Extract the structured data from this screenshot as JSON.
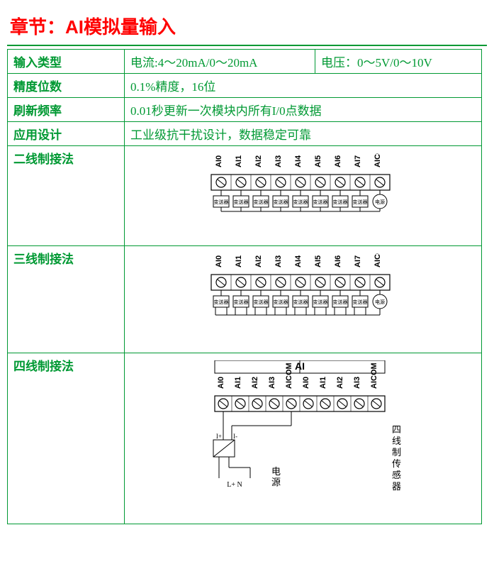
{
  "title": "章节：AI模拟量输入",
  "colors": {
    "title": "#ff0000",
    "border": "#009933",
    "text": "#009933",
    "diagram_stroke": "#000000"
  },
  "rows": {
    "input_type": {
      "label": "输入类型",
      "current": "电流:4～20mA/0～20mA",
      "voltage": "电压：0～5V/0～10V"
    },
    "precision": {
      "label": "精度位数",
      "value": "0.1%精度，16位"
    },
    "refresh": {
      "label": "刷新频率",
      "value": "0.01秒更新一次模块内所有I/0点数据"
    },
    "design": {
      "label": "应用设计",
      "value": "工业级抗干扰设计，数据稳定可靠"
    },
    "two_wire": {
      "label": "二线制接法"
    },
    "three_wire": {
      "label": "三线制接法"
    },
    "four_wire": {
      "label": "四线制接法"
    }
  },
  "terminals9": [
    "AI0",
    "AI1",
    "AI2",
    "AI3",
    "AI4",
    "AI5",
    "AI6",
    "AI7",
    "AICOM"
  ],
  "terminals10_left": [
    "AI0",
    "AI1",
    "AI2",
    "AI3",
    "AICOM"
  ],
  "terminals10_right": [
    "AI0",
    "AI1",
    "AI2",
    "AI3",
    "AICOM"
  ],
  "transmitter_label": "变送器",
  "power_label": "电源",
  "ai_header": "AI",
  "four_wire_sensor": "四线制传感器",
  "four_wire_power": "电源",
  "four_wire_iplus": "I+",
  "four_wire_iminus": "I-",
  "four_wire_ln": "L+ N",
  "diagram_style": {
    "stroke_width": 1,
    "screw_color": "#cccccc",
    "block_fill": "#ffffff"
  }
}
